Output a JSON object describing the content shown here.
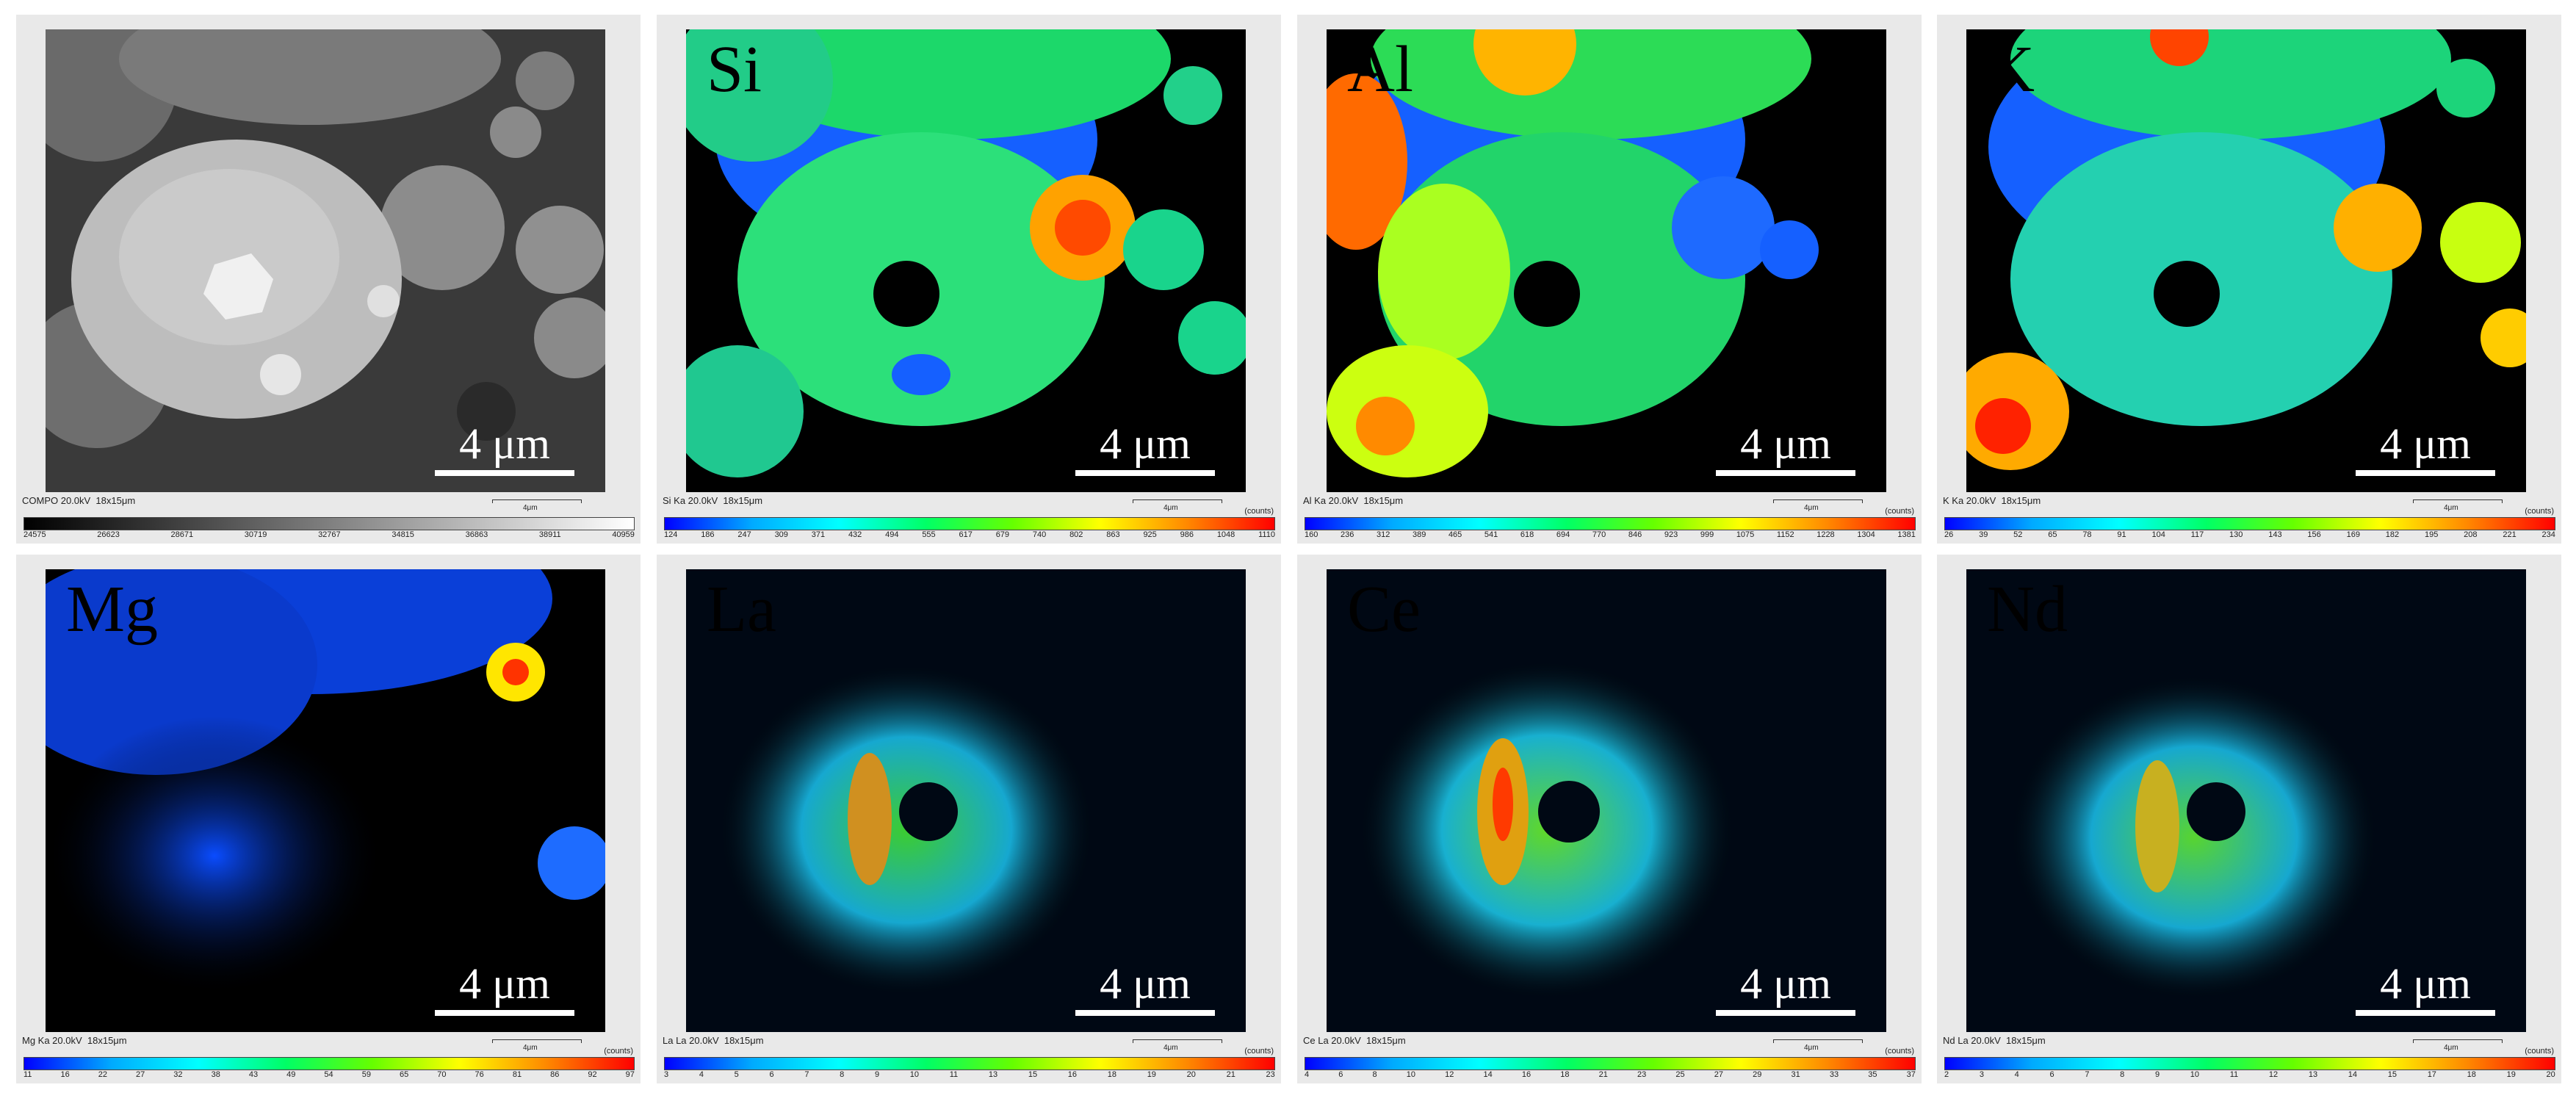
{
  "scale_label": "4 μm",
  "mini_scale_label": "4μm",
  "counts_label": "(counts)",
  "colors": {
    "panel_bg": "#e9e9e9",
    "map_bg": "#000000",
    "spectrum": [
      "#0000ff",
      "#00aaff",
      "#00ffff",
      "#00ff66",
      "#66ff00",
      "#ffff00",
      "#ff8800",
      "#ff0000"
    ],
    "grayscale": [
      "#000000",
      "#ffffff"
    ]
  },
  "panels": [
    {
      "element": "",
      "caption": "COMPO 20.0kV  18x15μm",
      "colormap": "gray",
      "show_counts": false,
      "ticks": [
        "24575",
        "26623",
        "28671",
        "30719",
        "32767",
        "34815",
        "36863",
        "38911",
        "40959"
      ]
    },
    {
      "element": "Si",
      "caption": "Si Ka 20.0kV  18x15μm",
      "colormap": "spectrum",
      "show_counts": true,
      "ticks": [
        "124",
        "186",
        "247",
        "309",
        "371",
        "432",
        "494",
        "555",
        "617",
        "679",
        "740",
        "802",
        "863",
        "925",
        "986",
        "1048",
        "1110"
      ]
    },
    {
      "element": "Al",
      "caption": "Al Ka 20.0kV  18x15μm",
      "colormap": "spectrum",
      "show_counts": true,
      "ticks": [
        "160",
        "236",
        "312",
        "389",
        "465",
        "541",
        "618",
        "694",
        "770",
        "846",
        "923",
        "999",
        "1075",
        "1152",
        "1228",
        "1304",
        "1381"
      ]
    },
    {
      "element": "K",
      "caption": "K Ka 20.0kV  18x15μm",
      "colormap": "spectrum",
      "show_counts": true,
      "ticks": [
        "26",
        "39",
        "52",
        "65",
        "78",
        "91",
        "104",
        "117",
        "130",
        "143",
        "156",
        "169",
        "182",
        "195",
        "208",
        "221",
        "234"
      ]
    },
    {
      "element": "Mg",
      "caption": "Mg Ka 20.0kV  18x15μm",
      "colormap": "spectrum",
      "show_counts": true,
      "ticks": [
        "11",
        "16",
        "22",
        "27",
        "32",
        "38",
        "43",
        "49",
        "54",
        "59",
        "65",
        "70",
        "76",
        "81",
        "86",
        "92",
        "97"
      ]
    },
    {
      "element": "La",
      "caption": "La La 20.0kV  18x15μm",
      "colormap": "spectrum",
      "show_counts": true,
      "ticks": [
        "3",
        "4",
        "5",
        "6",
        "7",
        "8",
        "9",
        "10",
        "11",
        "13",
        "15",
        "16",
        "18",
        "19",
        "20",
        "21",
        "23"
      ]
    },
    {
      "element": "Ce",
      "caption": "Ce La 20.0kV  18x15μm",
      "colormap": "spectrum",
      "show_counts": true,
      "ticks": [
        "4",
        "6",
        "8",
        "10",
        "12",
        "14",
        "16",
        "18",
        "21",
        "23",
        "25",
        "27",
        "29",
        "31",
        "33",
        "35",
        "37"
      ]
    },
    {
      "element": "Nd",
      "caption": "Nd La 20.0kV  18x15μm",
      "colormap": "spectrum",
      "show_counts": true,
      "ticks": [
        "2",
        "3",
        "4",
        "6",
        "7",
        "8",
        "9",
        "10",
        "11",
        "12",
        "13",
        "14",
        "15",
        "17",
        "18",
        "19",
        "20"
      ]
    }
  ]
}
